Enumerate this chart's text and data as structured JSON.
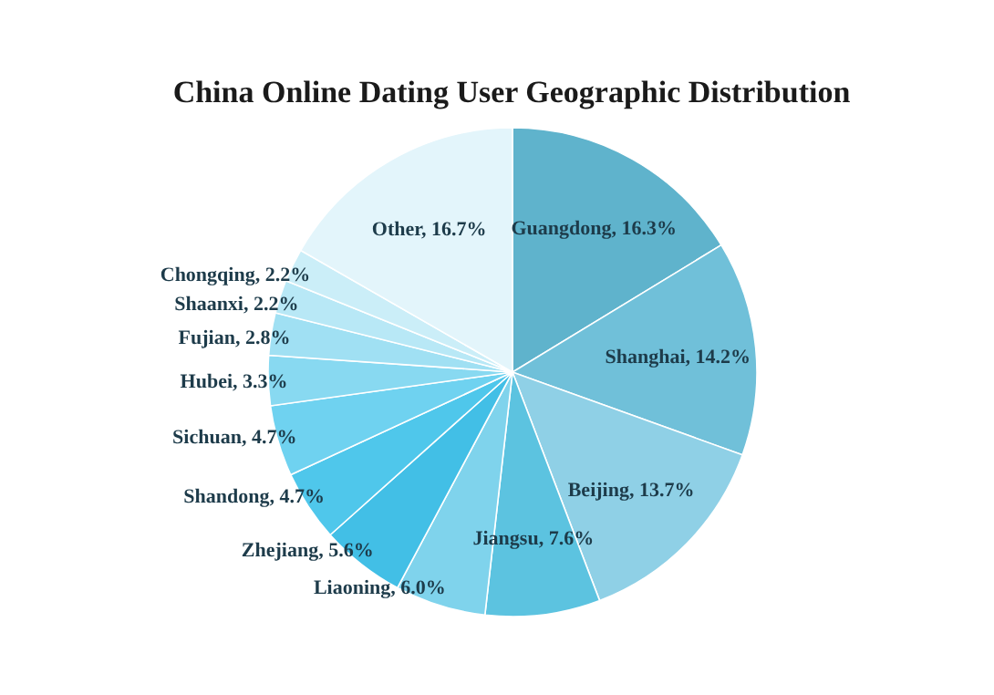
{
  "chart_data": {
    "type": "pie",
    "title": "China Online Dating User Geographic Distribution",
    "categories": [
      "Guangdong",
      "Shanghai",
      "Beijing",
      "Jiangsu",
      "Liaoning",
      "Zhejiang",
      "Shandong",
      "Sichuan",
      "Hubei",
      "Fujian",
      "Shaanxi",
      "Chongqing",
      "Other"
    ],
    "values": [
      16.3,
      14.2,
      13.7,
      7.6,
      6.0,
      5.6,
      4.7,
      4.7,
      3.3,
      2.8,
      2.2,
      2.2,
      16.7
    ],
    "value_labels": [
      "16.3%",
      "14.2%",
      "13.7%",
      "7.6%",
      "6.0%",
      "5.6%",
      "4.7%",
      "4.7%",
      "3.3%",
      "2.8%",
      "2.2%",
      "2.2%",
      "16.7%"
    ],
    "colors": [
      "#5fb3cc",
      "#70c0d9",
      "#8fd0e6",
      "#5cc3e0",
      "#7fd3ec",
      "#42bfe6",
      "#4fc7eb",
      "#6fd2f0",
      "#88d9f1",
      "#a0e0f3",
      "#b8e8f6",
      "#cbeef8",
      "#e3f5fb"
    ]
  }
}
